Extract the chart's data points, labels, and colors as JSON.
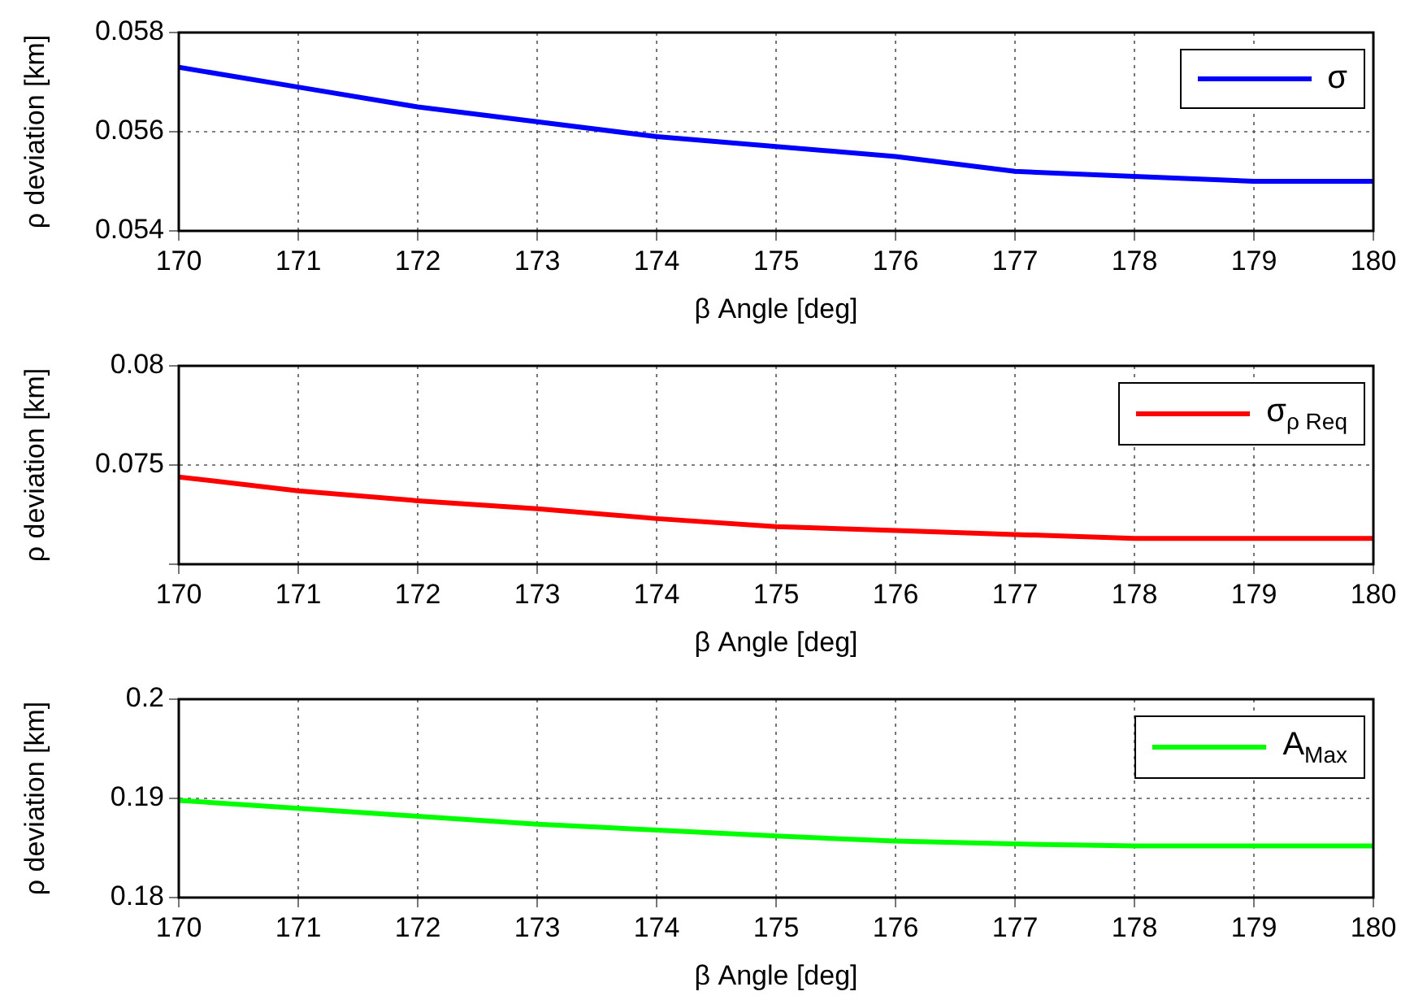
{
  "chart_data": [
    {
      "type": "line",
      "xlabel": "β Angle [deg]",
      "ylabel": "ρ deviation [km]",
      "x": [
        170,
        171,
        172,
        173,
        174,
        175,
        176,
        177,
        178,
        179,
        180
      ],
      "series": [
        {
          "name": "σ",
          "color": "#0000ff",
          "values": [
            0.0573,
            0.0569,
            0.0565,
            0.0562,
            0.0559,
            0.0557,
            0.0555,
            0.0552,
            0.0551,
            0.055,
            0.055
          ]
        }
      ],
      "xlim": [
        170,
        180
      ],
      "xticks": [
        170,
        171,
        172,
        173,
        174,
        175,
        176,
        177,
        178,
        179,
        180
      ],
      "ylim": [
        0.054,
        0.058
      ],
      "yticks": [
        0.054,
        0.056,
        0.058
      ],
      "grid": true,
      "legend": "top right",
      "marker": "none",
      "line_style": "solid"
    },
    {
      "type": "line",
      "xlabel": "β Angle [deg]",
      "ylabel": "ρ deviation [km]",
      "x": [
        170,
        171,
        172,
        173,
        174,
        175,
        176,
        177,
        178,
        179,
        180
      ],
      "series": [
        {
          "name": "σ$_{ρ Req}$",
          "color": "#ff0000",
          "values": [
            0.0744,
            0.0737,
            0.0732,
            0.0728,
            0.0723,
            0.0719,
            0.0717,
            0.0715,
            0.0713,
            0.0713,
            0.0713
          ]
        }
      ],
      "xlim": [
        170,
        180
      ],
      "xticks": [
        170,
        171,
        172,
        173,
        174,
        175,
        176,
        177,
        178,
        179,
        180
      ],
      "ylim": [
        0.07,
        0.08
      ],
      "yticks": [
        {
          "value": 0.07,
          "label": null
        },
        0.075,
        0.08
      ],
      "grid": true,
      "legend": "top right",
      "marker": "none",
      "line_style": "solid"
    },
    {
      "type": "line",
      "xlabel": "β Angle [deg]",
      "ylabel": "ρ deviation [km]",
      "x": [
        170,
        171,
        172,
        173,
        174,
        175,
        176,
        177,
        178,
        179,
        180
      ],
      "series": [
        {
          "name": "A$_{Max}$",
          "color": "#00ff00",
          "values": [
            0.1898,
            0.189,
            0.1882,
            0.1874,
            0.1868,
            0.1862,
            0.1857,
            0.1854,
            0.1852,
            0.1852,
            0.1852
          ]
        }
      ],
      "xlim": [
        170,
        180
      ],
      "xticks": [
        170,
        171,
        172,
        173,
        174,
        175,
        176,
        177,
        178,
        179,
        180
      ],
      "ylim": [
        0.18,
        0.2
      ],
      "yticks": [
        0.18,
        0.19,
        0.2
      ],
      "grid": true,
      "legend": "top right",
      "marker": "none",
      "line_style": "solid"
    }
  ]
}
